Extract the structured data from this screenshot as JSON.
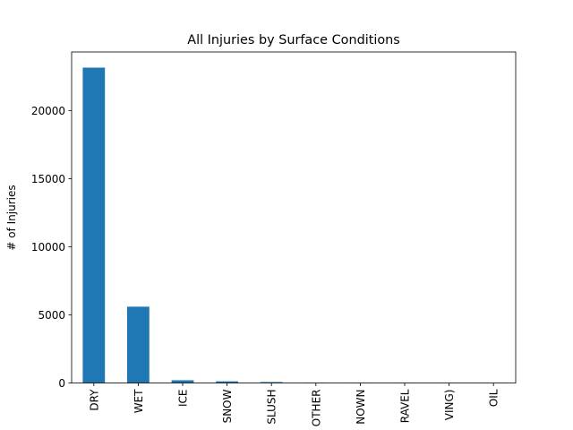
{
  "chart_data": {
    "type": "bar",
    "title": "All Injuries by Surface Conditions",
    "xlabel": "",
    "ylabel": "# of Injuries",
    "categories": [
      "DRY",
      "WET",
      "ICE",
      "SNOW",
      "SLUSH",
      "OTHER",
      "UNKNOWN",
      "SAND, MUD, DIRT, GRAVEL",
      "ROAD SURFACE (E.G. WET PAVING)",
      "OIL"
    ],
    "tick_label_visible": [
      "DRY",
      "WET",
      "ICE",
      "SNOW",
      "SLUSH",
      "OTHER",
      "NOWN",
      "RAVEL",
      "VING)",
      "OIL"
    ],
    "values": [
      23150,
      5600,
      200,
      120,
      70,
      20,
      15,
      10,
      8,
      5
    ],
    "ylim": [
      0,
      24300
    ],
    "yticks": [
      0,
      5000,
      10000,
      15000,
      20000
    ],
    "ytick_labels": [
      "0",
      "5000",
      "10000",
      "15000",
      "20000"
    ],
    "grid": false,
    "legend": "none",
    "bar_color": "#1f77b4"
  }
}
